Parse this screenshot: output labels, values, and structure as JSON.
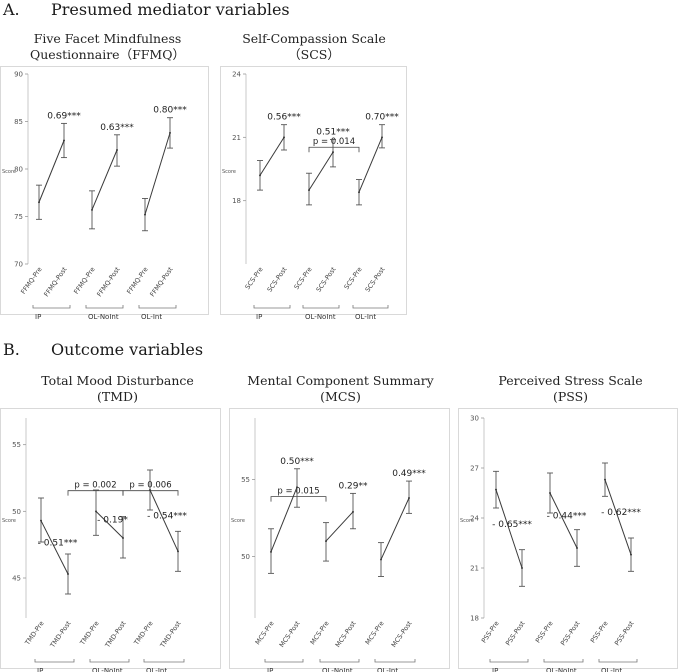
{
  "section_a": {
    "letter": "A.",
    "title": "Presumed mediator variables"
  },
  "section_b": {
    "letter": "B.",
    "title": "Outcome variables"
  },
  "colors": {
    "line": "#3a3a3a",
    "error_bar": "#555555",
    "frame": "#d9d9d9",
    "text": "#222222"
  },
  "chart_data": [
    {
      "id": "ffmq",
      "type": "line",
      "title_lines": [
        "Five Facet Mindfulness",
        "Questionnaire（FFMQ）"
      ],
      "xlabel": "",
      "ylabel": "Score",
      "ylim": [
        70,
        90
      ],
      "yticks": [
        "70",
        "75",
        "80",
        "85",
        "90"
      ],
      "categories": [
        "FFMQ-Pre",
        "FFMQ-Post",
        "FFMQ-Pre",
        "FFMQ-Post",
        "FFMQ-Pre",
        "FFMQ-Post"
      ],
      "groups": [
        {
          "label": "IP",
          "pre": {
            "mean": 76.5,
            "lo": 74.7,
            "hi": 78.3
          },
          "post": {
            "mean": 83.0,
            "lo": 81.2,
            "hi": 84.8
          },
          "effect": "0.69***"
        },
        {
          "label": "OL-NoInt",
          "pre": {
            "mean": 75.7,
            "lo": 73.7,
            "hi": 77.7
          },
          "post": {
            "mean": 82.0,
            "lo": 80.3,
            "hi": 83.6
          },
          "effect": "0.63***"
        },
        {
          "label": "OL-Int",
          "pre": {
            "mean": 75.2,
            "lo": 73.5,
            "hi": 76.9
          },
          "post": {
            "mean": 83.8,
            "lo": 82.2,
            "hi": 85.4
          },
          "effect": "0.80***"
        }
      ],
      "comparisons": [],
      "grid": false
    },
    {
      "id": "scs",
      "type": "line",
      "title_lines": [
        "Self-Compassion Scale",
        "（SCS）"
      ],
      "xlabel": "",
      "ylabel": "Score",
      "ylim": [
        15,
        24
      ],
      "yticks": [
        "18",
        "21",
        "24"
      ],
      "categories": [
        "SCS-Pre",
        "SCS-Post",
        "SCS-Pre",
        "SCS-Post",
        "SCS-Pre",
        "SCS-Post"
      ],
      "groups": [
        {
          "label": "IP",
          "pre": {
            "mean": 19.2,
            "lo": 18.5,
            "hi": 19.9
          },
          "post": {
            "mean": 21.0,
            "lo": 20.4,
            "hi": 21.6
          },
          "effect": "0.56***"
        },
        {
          "label": "OL-NoInt",
          "pre": {
            "mean": 18.5,
            "lo": 17.8,
            "hi": 19.3
          },
          "post": {
            "mean": 20.3,
            "lo": 19.6,
            "hi": 20.9
          },
          "effect": "0.51***"
        },
        {
          "label": "OL-Int",
          "pre": {
            "mean": 18.4,
            "lo": 17.8,
            "hi": 19.0
          },
          "post": {
            "mean": 21.0,
            "lo": 20.5,
            "hi": 21.6
          },
          "effect": "0.70***"
        }
      ],
      "comparisons": [
        {
          "from": 2,
          "to": 4,
          "label": "p = 0.014"
        }
      ],
      "grid": false
    },
    {
      "id": "tmd",
      "type": "line",
      "title_lines": [
        "Total Mood Disturbance",
        "(TMD)"
      ],
      "xlabel": "",
      "ylabel": "Score",
      "ylim": [
        42,
        57
      ],
      "yticks": [
        "45",
        "50",
        "55"
      ],
      "categories": [
        "TMD-Pre",
        "TMD-Post",
        "TMD-Pre",
        "TMD-Post",
        "TMD-Pre",
        "TMD-Post"
      ],
      "groups": [
        {
          "label": "IP",
          "pre": {
            "mean": 49.3,
            "lo": 47.7,
            "hi": 51.0
          },
          "post": {
            "mean": 45.3,
            "lo": 43.8,
            "hi": 46.8
          },
          "effect": "- 0.51***"
        },
        {
          "label": "OL-NoInt",
          "pre": {
            "mean": 50.0,
            "lo": 48.2,
            "hi": 51.6
          },
          "post": {
            "mean": 48.0,
            "lo": 46.5,
            "hi": 49.6
          },
          "effect": "- 0.19*"
        },
        {
          "label": "OL-Int",
          "pre": {
            "mean": 51.6,
            "lo": 50.1,
            "hi": 53.1
          },
          "post": {
            "mean": 47.0,
            "lo": 45.5,
            "hi": 48.5
          },
          "effect": "- 0.54***"
        }
      ],
      "comparisons": [
        {
          "from": 1,
          "to": 3,
          "label": "p = 0.002"
        },
        {
          "from": 3,
          "to": 5,
          "label": "p = 0.006"
        }
      ],
      "grid": false
    },
    {
      "id": "mcs",
      "type": "line",
      "title_lines": [
        "Mental Component Summary",
        "(MCS)"
      ],
      "xlabel": "",
      "ylabel": "Score",
      "ylim": [
        46,
        59
      ],
      "yticks": [
        "50",
        "55"
      ],
      "categories": [
        "MCS-Pre",
        "MCS-Post",
        "MCS-Pre",
        "MCS-Post",
        "MCS-Pre",
        "MCS-Post"
      ],
      "groups": [
        {
          "label": "IP",
          "pre": {
            "mean": 50.3,
            "lo": 48.9,
            "hi": 51.8
          },
          "post": {
            "mean": 54.5,
            "lo": 53.2,
            "hi": 55.7
          },
          "effect": "0.50***"
        },
        {
          "label": "OL-NoInt",
          "pre": {
            "mean": 51.0,
            "lo": 49.7,
            "hi": 52.2
          },
          "post": {
            "mean": 52.9,
            "lo": 51.8,
            "hi": 54.1
          },
          "effect": "0.29**"
        },
        {
          "label": "OL-Int",
          "pre": {
            "mean": 49.8,
            "lo": 48.7,
            "hi": 50.9
          },
          "post": {
            "mean": 53.8,
            "lo": 52.8,
            "hi": 54.9
          },
          "effect": "0.49***"
        }
      ],
      "comparisons": [
        {
          "from": 0,
          "to": 2,
          "label": "p = 0.015"
        }
      ],
      "grid": false
    },
    {
      "id": "pss",
      "type": "line",
      "title_lines": [
        "Perceived Stress Scale",
        "(PSS)"
      ],
      "xlabel": "",
      "ylabel": "Score",
      "ylim": [
        18,
        30
      ],
      "yticks": [
        "18",
        "21",
        "24",
        "27",
        "30"
      ],
      "categories": [
        "PSS-Pre",
        "PSS-Post",
        "PSS-Pre",
        "PSS-Post",
        "PSS-Pre",
        "PSS-Post"
      ],
      "groups": [
        {
          "label": "IP",
          "pre": {
            "mean": 25.7,
            "lo": 24.6,
            "hi": 26.8
          },
          "post": {
            "mean": 21.0,
            "lo": 19.9,
            "hi": 22.1
          },
          "effect": "- 0.65***"
        },
        {
          "label": "OL-NoInt",
          "pre": {
            "mean": 25.5,
            "lo": 24.3,
            "hi": 26.7
          },
          "post": {
            "mean": 22.2,
            "lo": 21.1,
            "hi": 23.3
          },
          "effect": "- 0.44***"
        },
        {
          "label": "OL-Int",
          "pre": {
            "mean": 26.3,
            "lo": 25.3,
            "hi": 27.3
          },
          "post": {
            "mean": 21.8,
            "lo": 20.8,
            "hi": 22.8
          },
          "effect": "- 0.62***"
        }
      ],
      "comparisons": [],
      "grid": false
    }
  ]
}
